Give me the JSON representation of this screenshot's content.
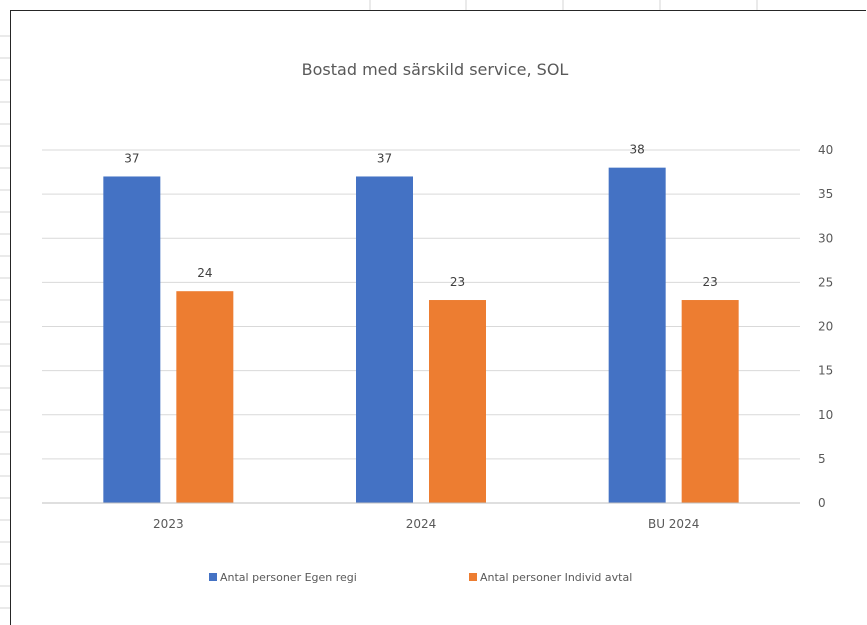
{
  "chart_data": {
    "type": "bar",
    "title": "Bostad med särskild service, SOL",
    "categories": [
      "2023",
      "2024",
      "BU 2024"
    ],
    "series": [
      {
        "name": "Antal personer Egen regi",
        "values": [
          37,
          37,
          38
        ],
        "color": "#4472C4"
      },
      {
        "name": "Antal personer Individ avtal",
        "values": [
          24,
          23,
          23
        ],
        "color": "#ED7D31"
      }
    ],
    "y_ticks": [
      "0",
      "5",
      "10",
      "15",
      "20",
      "25",
      "30",
      "35",
      "40"
    ],
    "ylim": [
      0,
      40
    ],
    "y_axis_side": "right",
    "grid": true,
    "legend_position": "bottom"
  }
}
